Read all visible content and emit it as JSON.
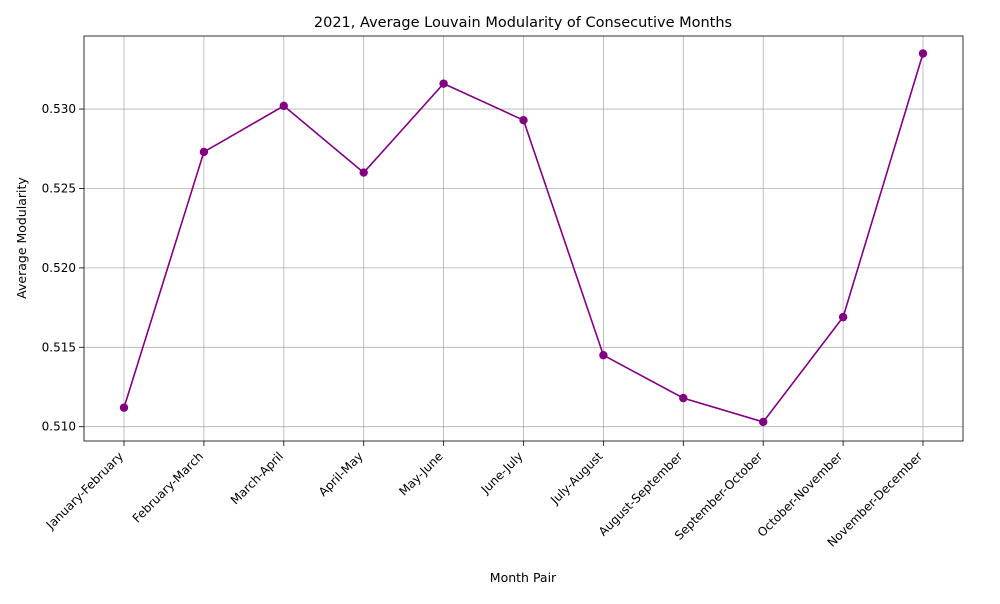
{
  "chart_data": {
    "type": "line",
    "title": "2021, Average Louvain Modularity of Consecutive Months",
    "xlabel": "Month Pair",
    "ylabel": "Average Modularity",
    "categories": [
      "January-February",
      "February-March",
      "March-April",
      "April-May",
      "May-June",
      "June-July",
      "July-August",
      "August-September",
      "September-October",
      "October-November",
      "November-December"
    ],
    "series": [
      {
        "values": [
          0.5112,
          0.5273,
          0.5302,
          0.526,
          0.5316,
          0.5293,
          0.5145,
          0.5118,
          0.5103,
          0.5169,
          0.5335
        ],
        "color": "#800080",
        "marker": "circle"
      }
    ],
    "ylim": [
      0.5091,
      0.5346
    ],
    "yticks": [
      "0.510",
      "0.515",
      "0.520",
      "0.525",
      "0.530"
    ],
    "ytick_values": [
      0.51,
      0.515,
      0.52,
      0.525,
      0.53
    ],
    "grid": true,
    "grid_color": "#b0b0b0",
    "x_tick_rotation": 45
  }
}
